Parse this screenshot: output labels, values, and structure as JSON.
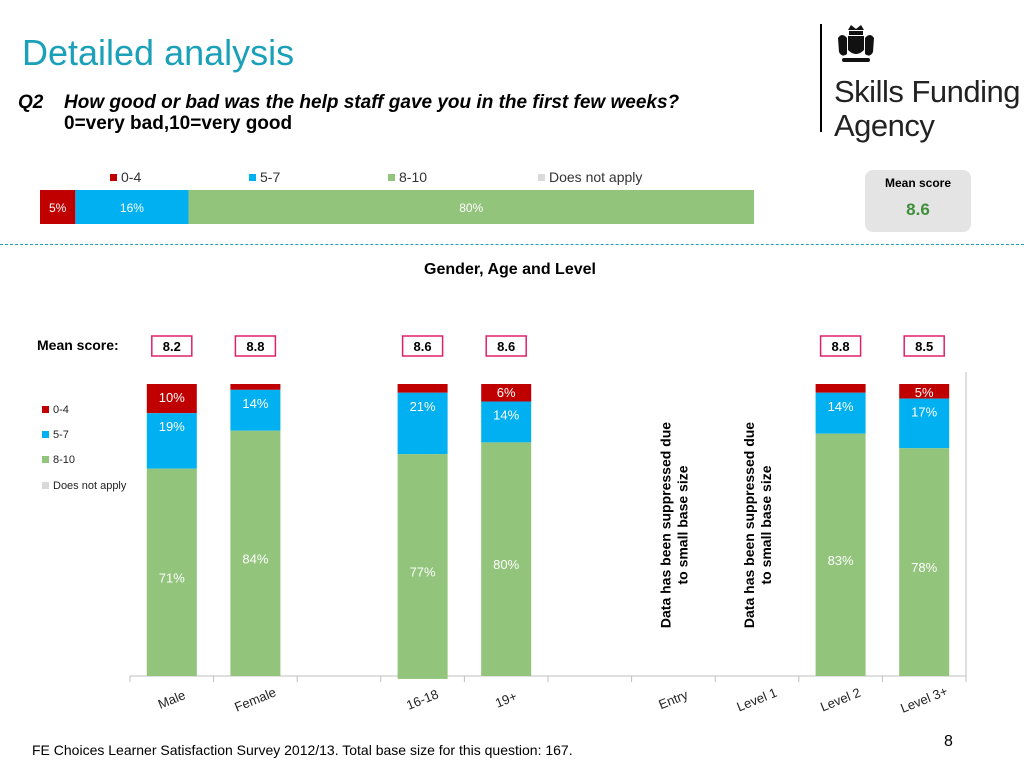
{
  "title": "Detailed analysis",
  "question": {
    "number": "Q2",
    "text": "How good or bad was the help staff gave you in the first few weeks?",
    "scale": "0=very bad,10=very good"
  },
  "logo": {
    "line1": "Skills Funding",
    "line2": "Agency"
  },
  "overall_mean": {
    "label": "Mean score",
    "value": "8.6"
  },
  "footer": "FE Choices  Learner Satisfaction Survey 2012/13.  Total base size for this question: 167.",
  "page_number": "8",
  "colors": {
    "0-4": "#c00000",
    "5-7": "#00b0f0",
    "8-10": "#92c47c",
    "Does not apply": "#d9d9d9",
    "title": "#1aa0b8",
    "mean_value": "#3f8f3a",
    "mean_box_border": "#e0206a"
  },
  "chart_data": [
    {
      "type": "bar",
      "orientation": "horizontal",
      "stacked": true,
      "legend": [
        "0-4",
        "5-7",
        "8-10",
        "Does not apply"
      ],
      "legend_position": "top",
      "series": [
        {
          "name": "0-4",
          "values": [
            5
          ],
          "label": "5%"
        },
        {
          "name": "5-7",
          "values": [
            16
          ],
          "label": "16%"
        },
        {
          "name": "8-10",
          "values": [
            80
          ],
          "label": "80%"
        },
        {
          "name": "Does not apply",
          "values": [
            0
          ],
          "label": ""
        }
      ]
    },
    {
      "type": "bar",
      "stacked": true,
      "title": "Gender, Age and Level",
      "mean_label": "Mean score:",
      "legend": [
        "0-4",
        "5-7",
        "8-10",
        "Does not apply"
      ],
      "legend_position": "left",
      "categories": [
        "Male",
        "Female",
        "",
        "16-18",
        "19+",
        "",
        "Entry",
        "Level 1",
        "Level 2",
        "Level 3+"
      ],
      "means": [
        "8.2",
        "8.8",
        "",
        "8.6",
        "8.6",
        "",
        "",
        "",
        "8.8",
        "8.5"
      ],
      "series": [
        {
          "name": "0-4",
          "values": [
            10,
            2,
            null,
            3,
            6,
            null,
            null,
            null,
            3,
            5
          ],
          "labels": [
            "10%",
            "",
            "",
            "",
            "6%",
            "",
            "",
            "",
            "",
            "5%"
          ]
        },
        {
          "name": "5-7",
          "values": [
            19,
            14,
            null,
            21,
            14,
            null,
            null,
            null,
            14,
            17
          ],
          "labels": [
            "19%",
            "14%",
            "",
            "21%",
            "14%",
            "",
            "",
            "",
            "14%",
            "17%"
          ]
        },
        {
          "name": "8-10",
          "values": [
            71,
            84,
            null,
            77,
            80,
            null,
            null,
            null,
            83,
            78
          ],
          "labels": [
            "71%",
            "84%",
            "",
            "77%",
            "80%",
            "",
            "",
            "",
            "83%",
            "78%"
          ]
        },
        {
          "name": "Does not apply",
          "values": [
            0,
            0,
            null,
            0,
            0,
            null,
            null,
            null,
            0,
            0
          ],
          "labels": [
            "",
            "",
            "",
            "",
            "",
            "",
            "",
            "",
            "",
            ""
          ]
        }
      ],
      "suppressed_note": "Data has been suppressed due to small base size",
      "suppressed_categories": [
        "Entry",
        "Level 1"
      ],
      "ylim": [
        0,
        100
      ]
    }
  ]
}
